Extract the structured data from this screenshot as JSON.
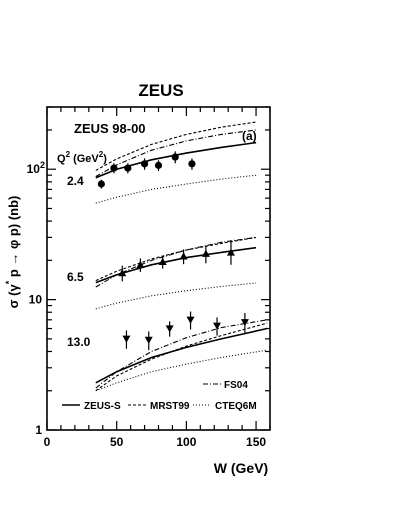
{
  "chart_data": {
    "type": "scatter",
    "title": "ZEUS",
    "panel_label": "(a)",
    "experiment_label": "ZEUS 98-00",
    "q2_header": {
      "base": "Q",
      "sup": "2",
      "unit": " (GeV",
      "unit_sup": "2",
      "close": ")"
    },
    "xlabel": "W (GeV)",
    "ylabel": {
      "pre": "σ (γ",
      "sup": "*",
      "post": " p → φ p) (nb)"
    },
    "xlim": [
      0,
      160
    ],
    "ylim": [
      1,
      300
    ],
    "yscale": "log",
    "x_ticks": [
      {
        "v": 0,
        "label": "0"
      },
      {
        "v": 50,
        "label": "50"
      },
      {
        "v": 100,
        "label": "100"
      },
      {
        "v": 150,
        "label": "150"
      }
    ],
    "y_ticks": [
      {
        "v": 1,
        "label": "1"
      },
      {
        "v": 10,
        "label": "10"
      },
      {
        "v": 100,
        "label": "10",
        "sup": "2"
      }
    ],
    "groups": [
      {
        "q2_label": "2.4",
        "marker": "circle",
        "x": [
          39,
          48,
          58,
          70,
          80,
          92,
          104
        ],
        "y": [
          77,
          102,
          102,
          110,
          107,
          124,
          110
        ],
        "yerr": [
          6,
          9,
          9,
          11,
          10,
          13,
          11
        ]
      },
      {
        "q2_label": "6.5",
        "marker": "triangle-up",
        "x": [
          54,
          67,
          83,
          98,
          114,
          132
        ],
        "y": [
          16,
          18.5,
          19.5,
          21.5,
          22.5,
          23
        ],
        "yerr": [
          2.2,
          2.2,
          2.2,
          2.8,
          3.5,
          4.5
        ]
      },
      {
        "q2_label": "13.0",
        "marker": "triangle-down",
        "x": [
          57,
          73,
          88,
          103,
          122,
          142
        ],
        "y": [
          5,
          4.9,
          6,
          7,
          6.3,
          6.7
        ],
        "yerr": [
          0.8,
          0.8,
          0.8,
          1.1,
          1.0,
          1.2
        ]
      }
    ],
    "curves": [
      {
        "name": "ZEUS-S",
        "style": "solid",
        "bands": [
          {
            "x": [
              35,
              50,
              75,
              100,
              125,
              150
            ],
            "y": [
              86,
              100,
              118,
              133,
              147,
              160
            ]
          },
          {
            "x": [
              35,
              50,
              75,
              100,
              125,
              150
            ],
            "y": [
              13.5,
              15.5,
              18.5,
              21,
              23,
              25
            ]
          },
          {
            "x": [
              35,
              50,
              75,
              100,
              125,
              158
            ],
            "y": [
              2.3,
              2.8,
              3.6,
              4.3,
              5.0,
              6.0
            ]
          }
        ]
      },
      {
        "name": "MRST99",
        "style": "dashed",
        "bands": [
          {
            "x": [
              35,
              50,
              75,
              100,
              125,
              150
            ],
            "y": [
              98,
              120,
              155,
              185,
              210,
              230
            ]
          },
          {
            "x": [
              35,
              50,
              75,
              100,
              125,
              150
            ],
            "y": [
              14,
              16.5,
              20.5,
              24,
              27,
              30
            ]
          },
          {
            "x": [
              35,
              50,
              75,
              100,
              125,
              158
            ],
            "y": [
              2.0,
              2.6,
              3.5,
              4.4,
              5.3,
              6.6
            ]
          }
        ]
      },
      {
        "name": "CTEQ6M",
        "style": "dotted",
        "bands": [
          {
            "x": [
              35,
              50,
              75,
              100,
              125,
              150
            ],
            "y": [
              55,
              61,
              70,
              77,
              84,
              90
            ]
          },
          {
            "x": [
              35,
              50,
              75,
              100,
              125,
              150
            ],
            "y": [
              8.5,
              9.4,
              10.7,
              11.7,
              12.6,
              13.4
            ]
          },
          {
            "x": [
              35,
              50,
              75,
              100,
              125,
              158
            ],
            "y": [
              2.0,
              2.3,
              2.8,
              3.2,
              3.6,
              4.1
            ]
          }
        ]
      },
      {
        "name": "FS04",
        "style": "dashdot",
        "bands": [
          {
            "x": [
              35,
              50,
              75,
              100,
              125,
              150
            ],
            "y": [
              88,
              108,
              140,
              165,
              185,
              200
            ]
          },
          {
            "x": [
              35,
              50,
              75,
              100,
              125,
              150
            ],
            "y": [
              12.5,
              15.5,
              20,
              24,
              27.5,
              30
            ]
          },
          {
            "x": [
              35,
              50,
              75,
              100,
              125,
              158
            ],
            "y": [
              2.1,
              2.8,
              4.0,
              5.1,
              6.1,
              7.0
            ]
          }
        ]
      }
    ],
    "legend": [
      "ZEUS-S",
      "MRST99",
      "CTEQ6M",
      "FS04"
    ],
    "legend_placement": "bottom",
    "grid": false
  }
}
